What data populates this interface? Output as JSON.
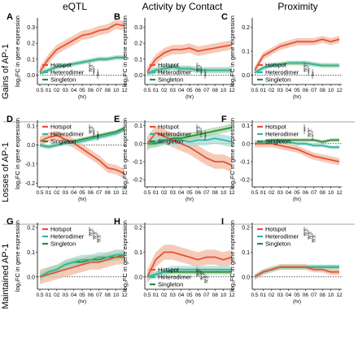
{
  "column_titles": [
    "eQTL",
    "Activity by Contact",
    "Proximity"
  ],
  "row_titles": [
    "Gains of AP-1",
    "Losses of AP-1",
    "Maintained AP-1"
  ],
  "ylabel": "log₂FC in gene expression",
  "xlabel": "(hr)",
  "x_ticks": [
    "0.5",
    "01",
    "02",
    "03",
    "04",
    "05",
    "06",
    "07",
    "08",
    "10",
    "12"
  ],
  "legend_labels": [
    "Hotspot",
    "Heterodimer",
    "Singleton"
  ],
  "colors": {
    "hotspot": "#e8503a",
    "heterodimer": "#36b3a8",
    "singleton": "#2e8b3a",
    "band_hot": "#f2b9a0",
    "band_het": "#a9ddd5",
    "band_sing": "#a9d3a6"
  },
  "chart_data": [
    {
      "panel": "A",
      "type": "line",
      "row": "Gains of AP-1",
      "column": "eQTL",
      "yticks": [
        "0.3",
        "0.2",
        "0.1",
        "0.0"
      ],
      "ylim": [
        -0.06,
        0.36
      ],
      "x": [
        "0.5",
        "01",
        "02",
        "03",
        "04",
        "05",
        "06",
        "07",
        "08",
        "10",
        "12"
      ],
      "series": [
        {
          "name": "Hotspot",
          "values": [
            0.02,
            0.1,
            0.16,
            0.19,
            0.22,
            0.25,
            0.26,
            0.28,
            0.29,
            0.32,
            0.31
          ],
          "band": 0.03
        },
        {
          "name": "Heterodimer",
          "values": [
            0.01,
            0.03,
            0.05,
            0.06,
            0.07,
            0.08,
            0.09,
            0.1,
            0.1,
            0.11,
            0.11
          ],
          "band": 0.015
        },
        {
          "name": "Singleton",
          "values": [
            0.01,
            0.03,
            0.05,
            0.06,
            0.07,
            0.08,
            0.09,
            0.1,
            0.1,
            0.11,
            0.11
          ],
          "band": 0.01
        }
      ],
      "legend": "bottom-left",
      "annotations": [
        "N.S.",
        "***",
        "***"
      ]
    },
    {
      "panel": "B",
      "type": "line",
      "row": "Gains of AP-1",
      "column": "Activity by Contact",
      "yticks": [
        "0.3",
        "0.2",
        "0.1",
        "0.0"
      ],
      "ylim": [
        -0.06,
        0.36
      ],
      "x": [
        "0.5",
        "01",
        "02",
        "03",
        "04",
        "05",
        "06",
        "07",
        "08",
        "10",
        "12"
      ],
      "series": [
        {
          "name": "Hotspot",
          "values": [
            0.02,
            0.1,
            0.14,
            0.16,
            0.16,
            0.17,
            0.15,
            0.16,
            0.17,
            0.18,
            0.19
          ],
          "band": 0.03
        },
        {
          "name": "Heterodimer",
          "values": [
            0.01,
            0.03,
            0.04,
            0.05,
            0.04,
            0.04,
            0.03,
            0.03,
            0.03,
            0.03,
            0.03
          ],
          "band": 0.02
        },
        {
          "name": "Singleton",
          "values": [
            0.01,
            0.03,
            0.04,
            0.05,
            0.04,
            0.04,
            0.03,
            0.03,
            0.03,
            0.03,
            0.03
          ],
          "band": 0.015
        }
      ],
      "legend": "bottom-left",
      "annotations": [
        "N.S.",
        "***",
        "***"
      ]
    },
    {
      "panel": "C",
      "type": "line",
      "row": "Gains of AP-1",
      "column": "Proximity",
      "yticks": [
        "0.2",
        "0.1",
        "0.0"
      ],
      "ylim": [
        -0.04,
        0.24
      ],
      "x": [
        "0.5",
        "01",
        "02",
        "03",
        "04",
        "05",
        "06",
        "07",
        "08",
        "10",
        "12"
      ],
      "series": [
        {
          "name": "Hotspot",
          "values": [
            0.02,
            0.08,
            0.1,
            0.12,
            0.13,
            0.14,
            0.14,
            0.14,
            0.15,
            0.14,
            0.15
          ],
          "band": 0.015
        },
        {
          "name": "Heterodimer",
          "values": [
            0.01,
            0.03,
            0.04,
            0.045,
            0.05,
            0.05,
            0.05,
            0.045,
            0.04,
            0.04,
            0.04
          ],
          "band": 0.01
        },
        {
          "name": "Singleton",
          "values": [
            0.01,
            0.03,
            0.04,
            0.045,
            0.05,
            0.05,
            0.05,
            0.045,
            0.04,
            0.04,
            0.04
          ],
          "band": 0.008
        }
      ],
      "legend": "bottom-left",
      "annotations": [
        "N.S.",
        "***",
        "***"
      ]
    },
    {
      "panel": "D",
      "type": "line",
      "row": "Losses of AP-1",
      "column": "eQTL",
      "yticks": [
        "0.1",
        "0.0",
        "-0.1",
        "-0.2"
      ],
      "ylim": [
        -0.22,
        0.13
      ],
      "x": [
        "0.5",
        "01",
        "02",
        "03",
        "04",
        "05",
        "06",
        "07",
        "08",
        "10",
        "12"
      ],
      "series": [
        {
          "name": "Hotspot",
          "values": [
            0.02,
            0.04,
            0.05,
            0.03,
            0.01,
            -0.02,
            -0.05,
            -0.08,
            -0.12,
            -0.13,
            -0.15
          ],
          "band": 0.025
        },
        {
          "name": "Heterodimer",
          "values": [
            0.0,
            -0.01,
            0.0,
            0.01,
            0.01,
            0.02,
            0.03,
            0.04,
            0.05,
            0.06,
            0.08
          ],
          "band": 0.012
        },
        {
          "name": "Singleton",
          "values": [
            0.0,
            -0.01,
            0.0,
            0.01,
            0.02,
            0.03,
            0.04,
            0.05,
            0.06,
            0.07,
            0.09
          ],
          "band": 0.01
        }
      ],
      "legend": "top-left",
      "annotations": [
        "N.S.",
        "***",
        "***"
      ]
    },
    {
      "panel": "E",
      "type": "line",
      "row": "Losses of AP-1",
      "column": "Activity by Contact",
      "yticks": [
        "0.1",
        "0.0",
        "-0.1",
        "-0.2"
      ],
      "ylim": [
        -0.24,
        0.13
      ],
      "x": [
        "0.5",
        "01",
        "02",
        "03",
        "04",
        "05",
        "06",
        "07",
        "08",
        "10",
        "12"
      ],
      "series": [
        {
          "name": "Hotspot",
          "values": [
            0.0,
            0.06,
            0.04,
            0.02,
            0.0,
            -0.02,
            -0.05,
            -0.08,
            -0.1,
            -0.1,
            -0.12
          ],
          "band": 0.04
        },
        {
          "name": "Heterodimer",
          "values": [
            0.0,
            0.01,
            0.02,
            0.02,
            0.02,
            0.01,
            0.02,
            0.02,
            0.03,
            0.02,
            0.01
          ],
          "band": 0.03
        },
        {
          "name": "Singleton",
          "values": [
            0.0,
            0.0,
            0.02,
            0.03,
            0.03,
            0.04,
            0.05,
            0.06,
            0.07,
            0.08,
            0.09
          ],
          "band": 0.02
        }
      ],
      "legend": "top-left",
      "annotations": [
        "N.S.",
        "**",
        "**"
      ]
    },
    {
      "panel": "F",
      "type": "line",
      "row": "Losses of AP-1",
      "column": "Proximity",
      "yticks": [
        "0.1",
        "0.0",
        "-0.1",
        "-0.2"
      ],
      "ylim": [
        -0.24,
        0.13
      ],
      "x": [
        "0.5",
        "01",
        "02",
        "03",
        "04",
        "05",
        "06",
        "07",
        "08",
        "10",
        "12"
      ],
      "series": [
        {
          "name": "Hotspot",
          "values": [
            0.0,
            0.0,
            0.0,
            -0.01,
            -0.02,
            -0.03,
            -0.05,
            -0.07,
            -0.08,
            -0.09,
            -0.1
          ],
          "band": 0.02
        },
        {
          "name": "Heterodimer",
          "values": [
            0.0,
            0.01,
            0.01,
            0.01,
            0.01,
            0.0,
            0.0,
            -0.01,
            -0.01,
            -0.02,
            -0.02
          ],
          "band": 0.01
        },
        {
          "name": "Singleton",
          "values": [
            0.0,
            0.01,
            0.02,
            0.02,
            0.02,
            0.02,
            0.02,
            0.02,
            0.01,
            0.02,
            0.02
          ],
          "band": 0.01
        }
      ],
      "legend": "top-left",
      "annotations": [
        "***",
        "N.S.",
        "*"
      ]
    },
    {
      "panel": "G",
      "type": "line",
      "row": "Maintained AP-1",
      "column": "eQTL",
      "yticks": [
        "0.2",
        "0.1",
        "0.0"
      ],
      "ylim": [
        -0.05,
        0.22
      ],
      "x": [
        "0.5",
        "01",
        "02",
        "03",
        "04",
        "05",
        "06",
        "07",
        "08",
        "10",
        "12"
      ],
      "series": [
        {
          "name": "Hotspot",
          "values": [
            0.0,
            0.01,
            0.02,
            0.03,
            0.04,
            0.05,
            0.06,
            0.06,
            0.07,
            0.08,
            0.08
          ],
          "band": 0.03
        },
        {
          "name": "Heterodimer",
          "values": [
            0.0,
            0.02,
            0.03,
            0.05,
            0.06,
            0.07,
            0.07,
            0.08,
            0.08,
            0.09,
            0.09
          ],
          "band": 0.02
        },
        {
          "name": "Singleton",
          "values": [
            0.0,
            0.02,
            0.03,
            0.05,
            0.06,
            0.06,
            0.07,
            0.07,
            0.08,
            0.08,
            0.09
          ],
          "band": 0.015
        }
      ],
      "legend": "top-left",
      "annotations": [
        "N.S.",
        "N.S.",
        "N.S."
      ]
    },
    {
      "panel": "H",
      "type": "line",
      "row": "Maintained AP-1",
      "column": "Activity by Contact",
      "yticks": [
        "0.2",
        "0.1",
        "0.0"
      ],
      "ylim": [
        -0.05,
        0.22
      ],
      "x": [
        "0.5",
        "01",
        "02",
        "03",
        "04",
        "05",
        "06",
        "07",
        "08",
        "10",
        "12"
      ],
      "series": [
        {
          "name": "Hotspot",
          "values": [
            0.0,
            0.07,
            0.1,
            0.1,
            0.09,
            0.08,
            0.07,
            0.08,
            0.08,
            0.07,
            0.08
          ],
          "band": 0.03
        },
        {
          "name": "Heterodimer",
          "values": [
            0.0,
            0.01,
            0.02,
            0.03,
            0.03,
            0.03,
            0.03,
            0.03,
            0.03,
            0.03,
            0.03
          ],
          "band": 0.015
        },
        {
          "name": "Singleton",
          "values": [
            0.0,
            0.01,
            0.02,
            0.02,
            0.02,
            0.02,
            0.02,
            0.02,
            0.02,
            0.02,
            0.02
          ],
          "band": 0.01
        }
      ],
      "legend": "bottom-left",
      "annotations": [
        "N.S.",
        "N.S.",
        "N.S."
      ]
    },
    {
      "panel": "I",
      "type": "line",
      "row": "Maintained AP-1",
      "column": "Proximity",
      "yticks": [
        "0.2",
        "0.1",
        "0.0"
      ],
      "ylim": [
        -0.05,
        0.22
      ],
      "x": [
        "0.5",
        "01",
        "02",
        "03",
        "04",
        "05",
        "06",
        "07",
        "08",
        "10",
        "12"
      ],
      "series": [
        {
          "name": "Hotspot",
          "values": [
            0.0,
            0.02,
            0.03,
            0.04,
            0.04,
            0.04,
            0.04,
            0.03,
            0.03,
            0.02,
            0.02
          ],
          "band": 0.012
        },
        {
          "name": "Heterodimer",
          "values": [
            0.0,
            0.02,
            0.03,
            0.04,
            0.04,
            0.04,
            0.04,
            0.04,
            0.04,
            0.04,
            0.04
          ],
          "band": 0.01
        },
        {
          "name": "Singleton",
          "values": [
            0.0,
            0.02,
            0.03,
            0.04,
            0.04,
            0.04,
            0.04,
            0.04,
            0.04,
            0.04,
            0.04
          ],
          "band": 0.008
        }
      ],
      "legend": "top-left",
      "annotations": [
        "N.S.",
        "N.S.",
        "N.S."
      ]
    }
  ]
}
